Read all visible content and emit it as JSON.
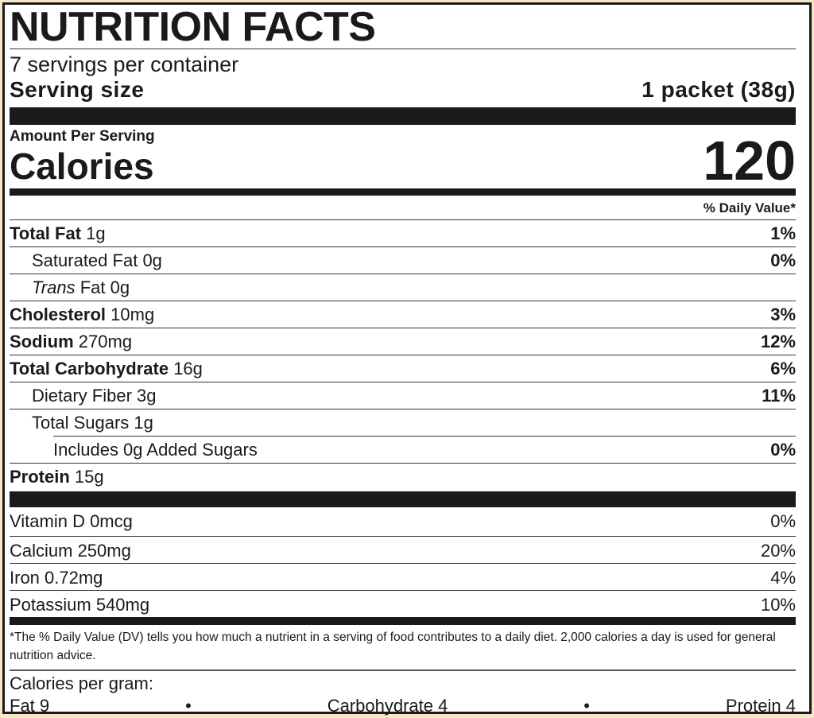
{
  "title": "NUTRITION FACTS",
  "servings_per_container": "7 servings per container",
  "serving_size": {
    "label": "Serving size",
    "value": "1 packet (38g)"
  },
  "amount_per_serving": "Amount Per Serving",
  "calories": {
    "label": "Calories",
    "value": "120"
  },
  "daily_value_header": "% Daily Value*",
  "nutrients": [
    {
      "name": "Total Fat",
      "amount": "1g",
      "dv": "1%"
    },
    {
      "name": "Saturated Fat",
      "amount": "0g",
      "dv": "0%"
    },
    {
      "name_italic": "Trans",
      "name": "Fat",
      "amount": "0g",
      "dv": ""
    },
    {
      "name": "Cholesterol",
      "amount": "10mg",
      "dv": "3%"
    },
    {
      "name": "Sodium",
      "amount": "270mg",
      "dv": "12%"
    },
    {
      "name": "Total Carbohydrate",
      "amount": "16g",
      "dv": "6%"
    },
    {
      "name": "Dietary Fiber",
      "amount": "3g",
      "dv": "11%"
    },
    {
      "name": "Total Sugars",
      "amount": "1g",
      "dv": ""
    },
    {
      "name": "Includes 0g Added Sugars",
      "amount": "",
      "dv": "0%"
    },
    {
      "name": "Protein",
      "amount": "15g",
      "dv": ""
    }
  ],
  "vitamins": [
    {
      "label": "Vitamin D 0mcg",
      "dv": "0%"
    },
    {
      "label": "Calcium 250mg",
      "dv": "20%"
    },
    {
      "label": "Iron 0.72mg",
      "dv": "4%"
    },
    {
      "label": "Potassium 540mg",
      "dv": "10%"
    }
  ],
  "footnote": "*The % Daily Value (DV) tells you how much a nutrient in a serving of food contributes to a daily diet. 2,000 calories a day is used for general nutrition advice.",
  "calories_per_gram": {
    "label": "Calories per gram:",
    "fat": "Fat 9",
    "carbohydrate": "Carbohydrate 4",
    "protein": "Protein 4",
    "separator": "•"
  }
}
